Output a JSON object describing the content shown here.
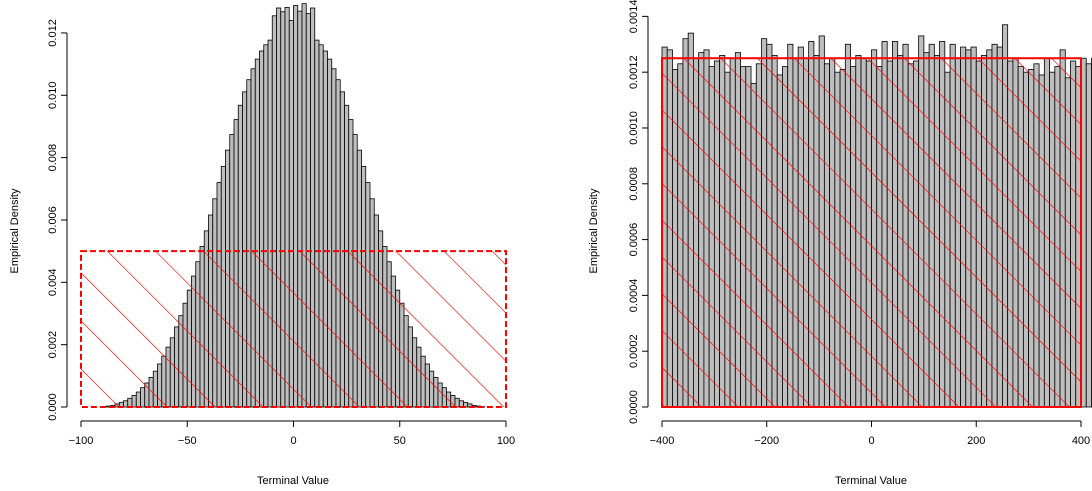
{
  "chart_data": [
    {
      "type": "bar",
      "subtype": "histogram",
      "xlabel": "Terminal Value",
      "ylabel": "Empirical Density",
      "xlim": [
        -100,
        100
      ],
      "ylim": [
        0,
        0.0128
      ],
      "xticks": [
        "−100",
        "−50",
        "0",
        "50",
        "100"
      ],
      "xtick_values": [
        -100,
        -50,
        0,
        50,
        100
      ],
      "yticks": [
        "0.000",
        "0.002",
        "0.004",
        "0.006",
        "0.008",
        "0.010",
        "0.012"
      ],
      "ytick_values": [
        0,
        0.002,
        0.004,
        0.006,
        0.008,
        0.01,
        0.012
      ],
      "bin_start": -90,
      "bin_width": 2,
      "bar_fill": "#bebebe",
      "bar_stroke": "#000000",
      "values": [
        1e-05,
        3e-05,
        5e-05,
        0.0001,
        0.00015,
        0.0002,
        0.00028,
        0.00037,
        0.00048,
        0.00062,
        0.00077,
        0.00095,
        0.00115,
        0.00138,
        0.00163,
        0.00192,
        0.00222,
        0.00257,
        0.00293,
        0.00333,
        0.00375,
        0.0042,
        0.00466,
        0.00515,
        0.00565,
        0.00616,
        0.00668,
        0.0072,
        0.00772,
        0.00824,
        0.00874,
        0.00922,
        0.00968,
        0.01011,
        0.0105,
        0.01085,
        0.01116,
        0.01142,
        0.01162,
        0.01177,
        0.01255,
        0.0128,
        0.01268,
        0.01282,
        0.0124,
        0.01288,
        0.0127,
        0.01294,
        0.01262,
        0.0128,
        0.01177,
        0.01162,
        0.01142,
        0.01116,
        0.01085,
        0.0105,
        0.01011,
        0.00968,
        0.00922,
        0.00874,
        0.00824,
        0.00772,
        0.0072,
        0.00668,
        0.00616,
        0.00565,
        0.00515,
        0.00466,
        0.0042,
        0.00375,
        0.00333,
        0.00293,
        0.00257,
        0.00222,
        0.00192,
        0.00163,
        0.00138,
        0.00115,
        0.00095,
        0.00077,
        0.00062,
        0.00048,
        0.00037,
        0.00028,
        0.0002,
        0.00015,
        0.0001,
        5e-05,
        3e-05,
        1e-05
      ],
      "overlay": {
        "shape": "uniform density rectangle",
        "x_range": [
          -100,
          100
        ],
        "density": 0.005,
        "color": "#ff0000",
        "fill": "diagonal hatch",
        "border": "dashed"
      }
    },
    {
      "type": "bar",
      "subtype": "histogram",
      "xlabel": "Terminal Value",
      "ylabel": "Empirical Density",
      "xlim": [
        -400,
        400
      ],
      "ylim": [
        0,
        0.00143
      ],
      "xticks": [
        "−400",
        "−200",
        "0",
        "200",
        "400"
      ],
      "xtick_values": [
        -400,
        -200,
        0,
        200,
        400
      ],
      "yticks": [
        "0.0000",
        "0.0002",
        "0.0004",
        "0.0006",
        "0.0008",
        "0.0010",
        "0.0012",
        "0.0014"
      ],
      "ytick_values": [
        0,
        0.0002,
        0.0004,
        0.0006,
        0.0008,
        0.001,
        0.0012,
        0.0014
      ],
      "bin_start": -400,
      "bin_width": 10,
      "bar_fill": "#bebebe",
      "bar_stroke": "#000000",
      "values": [
        0.00129,
        0.00128,
        0.00121,
        0.00123,
        0.00132,
        0.00134,
        0.00125,
        0.00127,
        0.00128,
        0.00122,
        0.00124,
        0.00126,
        0.0012,
        0.00125,
        0.00127,
        0.00122,
        0.00122,
        0.00116,
        0.00123,
        0.00132,
        0.0013,
        0.00126,
        0.00119,
        0.00122,
        0.0013,
        0.00125,
        0.00129,
        0.00125,
        0.00131,
        0.00126,
        0.00133,
        0.00123,
        0.00125,
        0.0012,
        0.00121,
        0.0013,
        0.00122,
        0.00126,
        0.00125,
        0.00124,
        0.00128,
        0.00122,
        0.00131,
        0.00124,
        0.00131,
        0.00126,
        0.0013,
        0.00123,
        0.00124,
        0.00133,
        0.00127,
        0.0013,
        0.00126,
        0.00131,
        0.0012,
        0.0013,
        0.00125,
        0.00129,
        0.00128,
        0.00129,
        0.00124,
        0.00126,
        0.00128,
        0.0013,
        0.00129,
        0.00137,
        0.00124,
        0.00125,
        0.00122,
        0.0012,
        0.00121,
        0.00123,
        0.00119,
        0.00125,
        0.0012,
        0.00122,
        0.00128,
        0.00118,
        0.00124,
        0.00122,
        0.00125,
        0.00123,
        0.00125,
        0.00126,
        0.0012,
        0.00124,
        0.00128,
        0.00133,
        0.0012,
        0.00124,
        0.00121,
        0.00118,
        0.00128,
        0.00126,
        0.00129,
        0.00117,
        0.00122,
        0.00126,
        0.00119,
        0.00125
      ],
      "overlay": {
        "shape": "uniform density rectangle",
        "x_range": [
          -400,
          400
        ],
        "density": 0.00125,
        "color": "#ff0000",
        "fill": "diagonal hatch",
        "border": "solid"
      }
    }
  ]
}
